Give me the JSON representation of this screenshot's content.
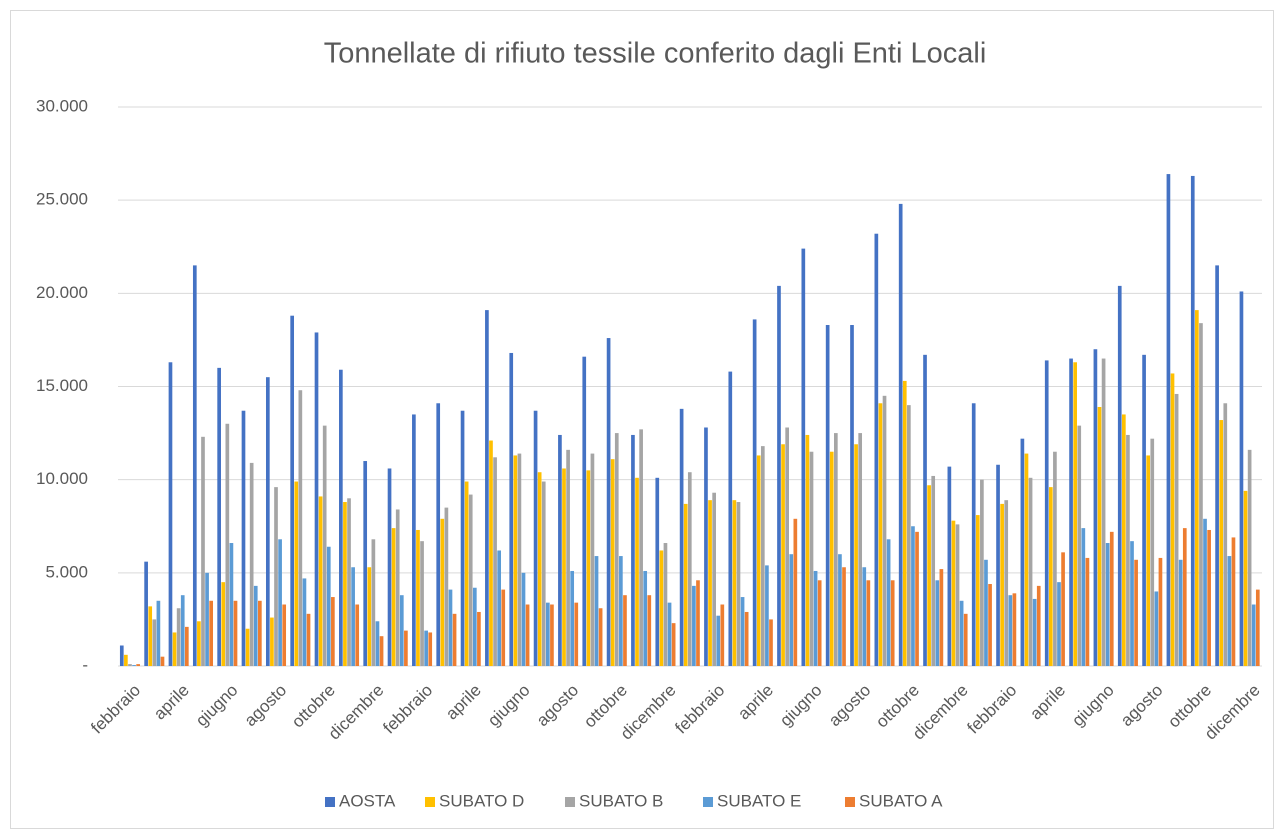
{
  "chart_data": {
    "type": "bar",
    "title": "Tonnellate di rifiuto tessile conferito dagli Enti Locali",
    "categories": [
      "febbraio",
      null,
      "aprile",
      null,
      "giugno",
      null,
      "agosto",
      null,
      "ottobre",
      null,
      "dicembre",
      null,
      "febbraio",
      null,
      "aprile",
      null,
      "giugno",
      null,
      "agosto",
      null,
      "ottobre",
      null,
      "dicembre",
      null,
      "febbraio",
      null,
      "aprile",
      null,
      "giugno",
      null,
      "agosto",
      null,
      "ottobre",
      null,
      "dicembre",
      null,
      "febbraio",
      null,
      "aprile",
      null,
      "giugno",
      null,
      "agosto",
      null,
      "ottobre",
      null,
      "dicembre"
    ],
    "series": [
      {
        "name": "AOSTA",
        "color": "#4472c4",
        "values": [
          1100,
          5600,
          16300,
          21500,
          16000,
          13700,
          15500,
          18800,
          17900,
          15900,
          11000,
          10600,
          13500,
          14100,
          13700,
          19100,
          16800,
          13700,
          12400,
          16600,
          17600,
          12400,
          10100,
          13800,
          12800,
          15800,
          18600,
          20400,
          22400,
          18300,
          18300,
          23200,
          24800,
          16700,
          10700,
          14100,
          10800,
          12200,
          16400,
          16500,
          17000,
          20400,
          16700,
          26400,
          26300,
          21500,
          20100
        ]
      },
      {
        "name": "SUBATO D",
        "color": "#ffc000",
        "values": [
          600,
          3200,
          1800,
          2400,
          4500,
          2000,
          2600,
          9900,
          9100,
          8800,
          5300,
          7400,
          7300,
          7900,
          9900,
          12100,
          11300,
          10400,
          10600,
          10500,
          11100,
          10100,
          6200,
          8700,
          8900,
          8900,
          11300,
          11900,
          12400,
          11500,
          11900,
          14100,
          15300,
          9700,
          7800,
          8100,
          8700,
          11400,
          9600,
          16300,
          13900,
          13500,
          11300,
          15700,
          19100,
          13200,
          9400
        ]
      },
      {
        "name": "SUBATO B",
        "color": "#a5a5a5",
        "values": [
          100,
          2500,
          3100,
          12300,
          13000,
          10900,
          9600,
          14800,
          12900,
          9000,
          6800,
          8400,
          6700,
          8500,
          9200,
          11200,
          11400,
          9900,
          11600,
          11400,
          12500,
          12700,
          6600,
          10400,
          9300,
          8800,
          11800,
          12800,
          11500,
          12500,
          12500,
          14500,
          14000,
          10200,
          7600,
          10000,
          8900,
          10100,
          11500,
          12900,
          16500,
          12400,
          12200,
          14600,
          18400,
          14100,
          11600
        ]
      },
      {
        "name": "SUBATO E",
        "color": "#5b9bd5",
        "values": [
          50,
          3500,
          3800,
          5000,
          6600,
          4300,
          6800,
          4700,
          6400,
          5300,
          2400,
          3800,
          1900,
          4100,
          4200,
          6200,
          5000,
          3400,
          5100,
          5900,
          5900,
          5100,
          3400,
          4300,
          2700,
          3700,
          5400,
          6000,
          5100,
          6000,
          5300,
          6800,
          7500,
          4600,
          3500,
          5700,
          3800,
          3600,
          4500,
          7400,
          6600,
          6700,
          4000,
          5700,
          7900,
          5900,
          3300
        ]
      },
      {
        "name": "SUBATO A",
        "color": "#ed7d31",
        "values": [
          100,
          500,
          2100,
          3500,
          3500,
          3500,
          3300,
          2800,
          3700,
          3300,
          1600,
          1900,
          1800,
          2800,
          2900,
          4100,
          3300,
          3300,
          3400,
          3100,
          3800,
          3800,
          2300,
          4600,
          3300,
          2900,
          2500,
          7900,
          4600,
          5300,
          4600,
          4600,
          7200,
          5200,
          2800,
          4400,
          3900,
          4300,
          6100,
          5800,
          7200,
          5700,
          5800,
          7400,
          7300,
          6900,
          4100
        ]
      }
    ],
    "ylim": [
      0,
      30000
    ],
    "yticks": [
      {
        "value": 0,
        "label": "-"
      },
      {
        "value": 5000,
        "label": "5.000"
      },
      {
        "value": 10000,
        "label": "10.000"
      },
      {
        "value": 15000,
        "label": "15.000"
      },
      {
        "value": 20000,
        "label": "20.000"
      },
      {
        "value": 25000,
        "label": "25.000"
      },
      {
        "value": 30000,
        "label": "30.000"
      }
    ],
    "grid": true,
    "legend": "bottom"
  }
}
